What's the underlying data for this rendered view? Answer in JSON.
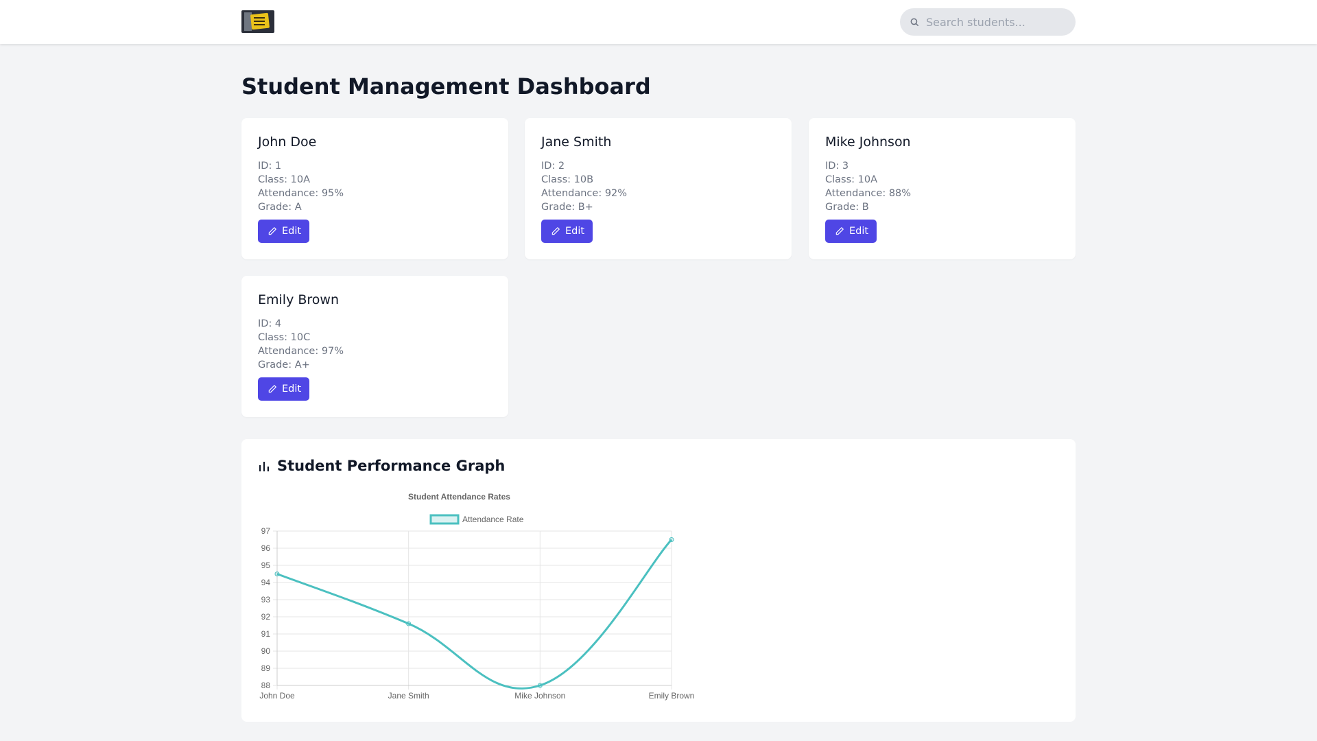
{
  "header": {
    "logo_icon": "logo-image",
    "search_placeholder": "Search students...",
    "search_value": ""
  },
  "page_title": "Student Management Dashboard",
  "students": [
    {
      "name": "John Doe",
      "id": "ID: 1",
      "class": "Class: 10A",
      "attendance": "Attendance: 95%",
      "grade": "Grade: A",
      "edit_label": "Edit"
    },
    {
      "name": "Jane Smith",
      "id": "ID: 2",
      "class": "Class: 10B",
      "attendance": "Attendance: 92%",
      "grade": "Grade: B+",
      "edit_label": "Edit"
    },
    {
      "name": "Mike Johnson",
      "id": "ID: 3",
      "class": "Class: 10A",
      "attendance": "Attendance: 88%",
      "grade": "Grade: B",
      "edit_label": "Edit"
    },
    {
      "name": "Emily Brown",
      "id": "ID: 4",
      "class": "Class: 10C",
      "attendance": "Attendance: 97%",
      "grade": "Grade: A+",
      "edit_label": "Edit"
    }
  ],
  "graph_section": {
    "title": "Student Performance Graph",
    "icon": "bar-chart-icon"
  },
  "colors": {
    "accent": "#4f46e5",
    "line": "#4bc0c0"
  },
  "chart_data": {
    "type": "line",
    "title": "Student Attendance Rates",
    "categories": [
      "John Doe",
      "Jane Smith",
      "Mike Johnson",
      "Emily Brown"
    ],
    "series": [
      {
        "name": "Attendance Rate",
        "values": [
          94.5,
          91.6,
          88,
          96.5
        ]
      }
    ],
    "ylim": [
      88,
      97
    ],
    "yticks": [
      97,
      96,
      95,
      94,
      93,
      92,
      91,
      90,
      89,
      88
    ],
    "grid": true,
    "legend": "top"
  }
}
